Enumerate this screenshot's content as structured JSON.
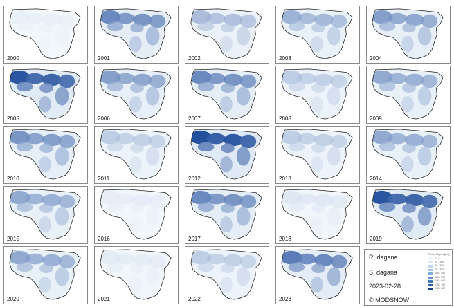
{
  "panels": [
    {
      "year": "2000",
      "snow_level": 0.08
    },
    {
      "year": "2001",
      "snow_level": 0.7
    },
    {
      "year": "2002",
      "snow_level": 0.45
    },
    {
      "year": "2003",
      "snow_level": 0.5
    },
    {
      "year": "2004",
      "snow_level": 0.6
    },
    {
      "year": "2005",
      "snow_level": 0.9
    },
    {
      "year": "2006",
      "snow_level": 0.6
    },
    {
      "year": "2007",
      "snow_level": 0.7
    },
    {
      "year": "2008",
      "snow_level": 0.35
    },
    {
      "year": "2009",
      "snow_level": 0.55
    },
    {
      "year": "2010",
      "snow_level": 0.65
    },
    {
      "year": "2011",
      "snow_level": 0.35
    },
    {
      "year": "2012",
      "snow_level": 0.95
    },
    {
      "year": "2013",
      "snow_level": 0.35
    },
    {
      "year": "2014",
      "snow_level": 0.55
    },
    {
      "year": "2015",
      "snow_level": 0.55
    },
    {
      "year": "2016",
      "snow_level": 0.1
    },
    {
      "year": "2017",
      "snow_level": 0.7
    },
    {
      "year": "2018",
      "snow_level": 0.15
    },
    {
      "year": "2019",
      "snow_level": 0.9
    },
    {
      "year": "2020",
      "snow_level": 0.55
    },
    {
      "year": "2021",
      "snow_level": 0.12
    },
    {
      "year": "2022",
      "snow_level": 0.35
    },
    {
      "year": "2023",
      "snow_level": 0.75
    }
  ],
  "info": {
    "river": "R. dagana",
    "station": "S. dagana",
    "date": "2023-02-28",
    "credit": "© MODSNOW"
  },
  "legend": {
    "title": "Snow Depth [cm]",
    "levels": [
      "1 - 5",
      "25 - 100",
      "50 - 200",
      "75 - 300",
      "100 - 400",
      "125 - 500",
      "150 - 600",
      "175 - 700",
      "200 - 800"
    ],
    "colors": [
      "#f2f6fb",
      "#dbe7f4",
      "#c2d6ec",
      "#a4c2e3",
      "#84acd8",
      "#6393cc",
      "#4579bd",
      "#2c5ea9",
      "#1c418a"
    ]
  }
}
